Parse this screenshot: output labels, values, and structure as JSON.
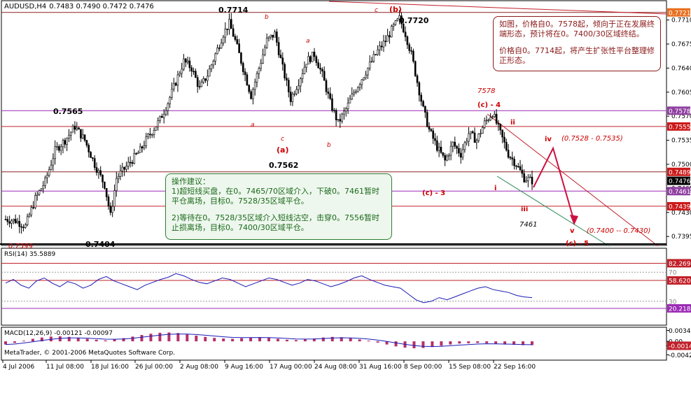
{
  "header": {
    "symbol": "AUDUSD,H4",
    "ohlc": "0.7483 0.7490 0.7472 0.7476"
  },
  "colors": {
    "candle": "#000000",
    "purple_line": "#9b2bb5",
    "red_line": "#c0202a",
    "brown_line": "#8b2020",
    "annotation_red": "#cc0000",
    "rsi_line": "#1a1ab5",
    "macd_hist": "#b5306a",
    "label_orange": "#e87020",
    "label_purple": "#9040a0",
    "label_red": "#cc1a1a",
    "label_black": "#000000"
  },
  "notes": {
    "right": {
      "line1": "如图，价格自0。7578起，倾向于正在发展终端形态，预计将在0。7400/30区域终结。",
      "line2": "价格自0。7714起，将产生扩张性平台整理修正形态。"
    },
    "green": {
      "title": "操作建议：",
      "item1": "1)超短线买盘，在0。7465/70区域介入，下破0。7461暂时平仓离场，目标0。7528/35区域平仓。",
      "item2": "2)等待在0。7528/35区域介入短线沽空，击穿0。7556暂时止损离场，目标0。7400/30区域平仓。"
    }
  },
  "annotations": {
    "p7714": "0.7714",
    "p7720": "0.7720",
    "p7565": "0.7565",
    "p7562": "0.7562",
    "p7404": "0.7404",
    "p7399": "0.7399",
    "p7578": "7578",
    "p7461": "7461",
    "w_b_top": "(b)",
    "w_a_mid": "(a)",
    "w_c4": "(c) - 4",
    "w_c3": "(c) - 3",
    "w_c5": "(c) - 5",
    "sub_b1": "b",
    "sub_a1": "a",
    "sub_a2": "a",
    "sub_c1": "c",
    "sub_b2": "b",
    "sub_c2": "c",
    "sub_a3": "a",
    "w_i": "i",
    "w_ii": "ii",
    "w_iii": "iii",
    "w_iv": "iv",
    "w_v": "v",
    "range1": "(0.7528 - 0.7535)",
    "range2": "(0.7400 -- 0.7430)"
  },
  "chart_data": [
    {
      "type": "candlestick",
      "title": "AUDUSD,H4",
      "ylim": [
        0.7385,
        0.7735
      ],
      "ticks": [
        0.771,
        0.7675,
        0.764,
        0.7605,
        0.757,
        0.7535,
        0.75,
        0.7465,
        0.743,
        0.7395
      ],
      "tick_labels": [
        "0.7710",
        "0.7675",
        "0.7640",
        "0.7605",
        "0.7570",
        "0.7535",
        "0.7500",
        "0.7465",
        "0.7430",
        "0.7395"
      ],
      "price_labels": [
        {
          "value": 0.7721,
          "text": "0.7721",
          "color": "#e87020"
        },
        {
          "value": 0.7578,
          "text": "0.7578",
          "color": "#9040a0"
        },
        {
          "value": 0.7555,
          "text": "0.7555",
          "color": "#cc1a1a"
        },
        {
          "value": 0.7489,
          "text": "0.7489",
          "color": "#cc1a1a"
        },
        {
          "value": 0.7476,
          "text": "0.7476",
          "color": "#000000"
        },
        {
          "value": 0.7461,
          "text": "0.7461",
          "color": "#9040a0"
        },
        {
          "value": 0.7439,
          "text": "0.7439",
          "color": "#cc1a1a"
        }
      ],
      "x_labels": [
        "4 Jul 2006",
        "11 Jul 08:00",
        "18 Jul 16:00",
        "26 Jul 00:00",
        "2 Aug 08:00",
        "9 Aug 16:00",
        "17 Aug 00:00",
        "24 Aug 08:00",
        "31 Aug 16:00",
        "8 Sep 00:00",
        "15 Sep 08:00",
        "22 Sep 16:00"
      ],
      "close_path": [
        [
          0,
          0.742
        ],
        [
          5,
          0.7418
        ],
        [
          10,
          0.741
        ],
        [
          15,
          0.745
        ],
        [
          20,
          0.7475
        ],
        [
          25,
          0.752
        ],
        [
          30,
          0.7535
        ],
        [
          35,
          0.7555
        ],
        [
          40,
          0.7535
        ],
        [
          45,
          0.75
        ],
        [
          50,
          0.747
        ],
        [
          53,
          0.7425
        ],
        [
          56,
          0.748
        ],
        [
          62,
          0.75
        ],
        [
          68,
          0.752
        ],
        [
          72,
          0.754
        ],
        [
          78,
          0.7565
        ],
        [
          82,
          0.759
        ],
        [
          86,
          0.762
        ],
        [
          90,
          0.765
        ],
        [
          94,
          0.764
        ],
        [
          98,
          0.761
        ],
        [
          102,
          0.763
        ],
        [
          106,
          0.766
        ],
        [
          110,
          0.769
        ],
        [
          113,
          0.7705
        ],
        [
          116,
          0.768
        ],
        [
          120,
          0.764
        ],
        [
          124,
          0.76
        ],
        [
          128,
          0.764
        ],
        [
          132,
          0.768
        ],
        [
          136,
          0.769
        ],
        [
          140,
          0.764
        ],
        [
          144,
          0.7595
        ],
        [
          148,
          0.762
        ],
        [
          152,
          0.765
        ],
        [
          156,
          0.766
        ],
        [
          160,
          0.763
        ],
        [
          164,
          0.759
        ],
        [
          168,
          0.756
        ],
        [
          172,
          0.758
        ],
        [
          176,
          0.7605
        ],
        [
          180,
          0.7625
        ],
        [
          184,
          0.7645
        ],
        [
          188,
          0.7665
        ],
        [
          192,
          0.768
        ],
        [
          196,
          0.77
        ],
        [
          199,
          0.7712
        ],
        [
          202,
          0.769
        ],
        [
          205,
          0.766
        ],
        [
          208,
          0.762
        ],
        [
          211,
          0.758
        ],
        [
          214,
          0.755
        ],
        [
          218,
          0.7525
        ],
        [
          222,
          0.7505
        ],
        [
          226,
          0.753
        ],
        [
          230,
          0.7515
        ],
        [
          234,
          0.7545
        ],
        [
          238,
          0.7535
        ],
        [
          242,
          0.756
        ],
        [
          246,
          0.7575
        ],
        [
          250,
          0.7545
        ],
        [
          254,
          0.7515
        ],
        [
          258,
          0.75
        ],
        [
          262,
          0.748
        ],
        [
          266,
          0.7476
        ]
      ]
    },
    {
      "type": "line",
      "title": "RSI(14) 35.5889",
      "ylim": [
        0,
        100
      ],
      "levels": [
        82.2699,
        70,
        58.6207,
        30,
        20.2186
      ],
      "level_labels": [
        "82.2699",
        "70",
        "58.6207",
        "30",
        "20.2186"
      ],
      "values": [
        55,
        60,
        52,
        48,
        58,
        62,
        55,
        50,
        57,
        54,
        48,
        52,
        60,
        64,
        58,
        54,
        50,
        46,
        52,
        56,
        60,
        63,
        68,
        65,
        60,
        56,
        54,
        58,
        62,
        60,
        55,
        50,
        54,
        58,
        62,
        60,
        56,
        52,
        55,
        60,
        58,
        54,
        50,
        53,
        57,
        62,
        65,
        60,
        56,
        52,
        50,
        48,
        40,
        32,
        28,
        30,
        35,
        32,
        36,
        40,
        44,
        48,
        50,
        46,
        44,
        42,
        38,
        36,
        35
      ]
    },
    {
      "type": "bar",
      "title": "MACD(12,26,9) -0.00121 -0.00097",
      "ylim": [
        -0.0055,
        0.004
      ],
      "levels": [
        0.00344,
        0,
        -0.0014,
        -0.00425
      ],
      "level_labels": [
        "0.00344",
        "0.00",
        "-0.0014",
        "-0.00425"
      ],
      "values": [
        -0.001,
        -0.0005,
        0.0002,
        0.0008,
        0.0012,
        0.0015,
        0.0016,
        0.0014,
        0.0011,
        0.0008,
        0.0005,
        0.0003,
        0.0006,
        0.001,
        0.0015,
        0.002,
        0.0024,
        0.0027,
        0.0028,
        0.0026,
        0.0022,
        0.0018,
        0.0014,
        0.0011,
        0.0009,
        0.0008,
        0.001,
        0.0012,
        0.0013,
        0.0011,
        0.0008,
        0.0005,
        0.0004,
        0.0006,
        0.0009,
        0.0012,
        0.0014,
        0.0013,
        0.001,
        0.0006,
        0.0002,
        -0.0004,
        -0.001,
        -0.0016,
        -0.002,
        -0.0022,
        -0.0021,
        -0.0018,
        -0.0014,
        -0.001,
        -0.0007,
        -0.0006,
        -0.0005,
        -0.0006,
        -0.0008,
        -0.001,
        -0.0011,
        -0.0012,
        -0.0012
      ],
      "copyright": "MetaTrader, © 2001-2006 MetaQuotes Software Corp."
    }
  ]
}
